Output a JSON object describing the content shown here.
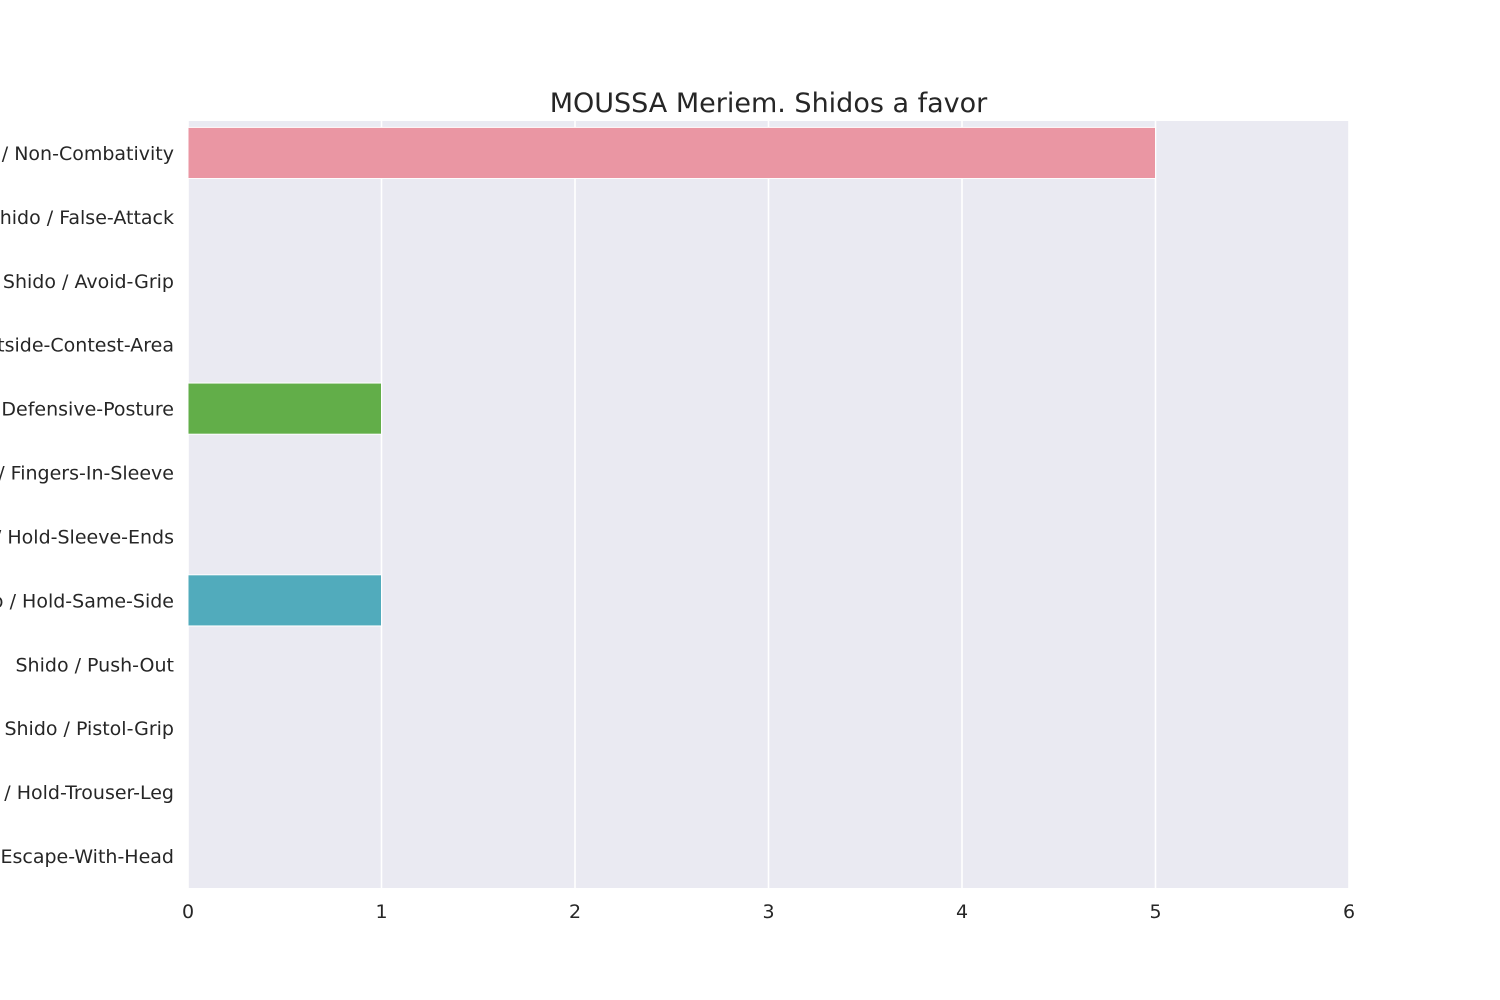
{
  "chart_data": {
    "type": "bar",
    "orientation": "horizontal",
    "title": "MOUSSA Meriem. Shidos a favor",
    "xlabel": "",
    "ylabel": "",
    "xlim": [
      0,
      6
    ],
    "x_ticks": [
      "0",
      "1",
      "2",
      "3",
      "4",
      "5",
      "6"
    ],
    "grid": true,
    "legend": "none",
    "categories": [
      "Shido / Non-Combativity",
      "Shido / False-Attack",
      "Shido / Avoid-Grip",
      "Shido / Outside-Contest-Area",
      "Shido / Defensive-Posture",
      "Shido / Fingers-In-Sleeve",
      "Shido / Hold-Sleeve-Ends",
      "Shido / Hold-Same-Side",
      "Shido / Push-Out",
      "Shido / Pistol-Grip",
      "Shido / Hold-Trouser-Leg",
      "Shido / Escape-With-Head"
    ],
    "values": [
      5,
      0,
      0,
      0,
      1,
      0,
      0,
      1,
      0,
      0,
      0,
      0
    ],
    "colors": [
      "#ea96a3",
      "#e19a72",
      "#c5a250",
      "#a9aa4d",
      "#62ae49",
      "#4fb081",
      "#52ae9f",
      "#51abbc",
      "#5aa8d8",
      "#a89fe8",
      "#d78fe6",
      "#ed8ec3"
    ],
    "plot_background": "#eaeaf2",
    "grid_color": "#ffffff"
  }
}
